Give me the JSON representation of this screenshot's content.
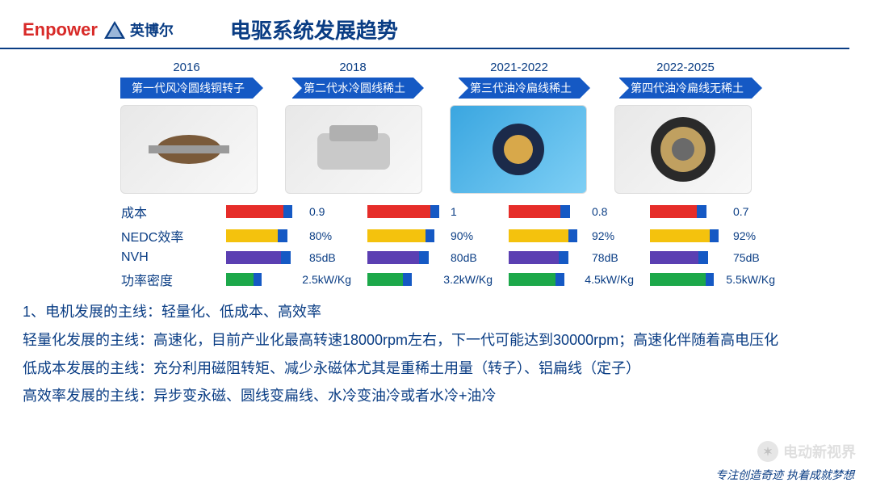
{
  "logo": {
    "en": "Enpower",
    "cn": "英博尔"
  },
  "title": "电驱系统发展趋势",
  "generations": [
    {
      "year": "2016",
      "label": "第一代风冷圆线铜转子"
    },
    {
      "year": "2018",
      "label": "第二代水冷圆线稀土"
    },
    {
      "year": "2021-2022",
      "label": "第三代油冷扁线稀土"
    },
    {
      "year": "2022-2025",
      "label": "第四代油冷扁线无稀土"
    }
  ],
  "metrics": {
    "labels": [
      "成本",
      "NEDC效率",
      "NVH",
      "功率密度"
    ],
    "rows": [
      {
        "color_main": "#e62d29",
        "color_tip": "#1559c4",
        "values": [
          "0.9",
          "1",
          "0.8",
          "0.7"
        ],
        "fills": [
          0.85,
          0.92,
          0.78,
          0.72
        ]
      },
      {
        "color_main": "#f4c20d",
        "color_tip": "#1559c4",
        "values": [
          "80%",
          "90%",
          "92%",
          "92%"
        ],
        "fills": [
          0.78,
          0.86,
          0.88,
          0.88
        ]
      },
      {
        "color_main": "#5b3fb2",
        "color_tip": "#1559c4",
        "values": [
          "85dB",
          "80dB",
          "78dB",
          "75dB"
        ],
        "fills": [
          0.82,
          0.78,
          0.76,
          0.74
        ]
      },
      {
        "color_main": "#1ca84a",
        "color_tip": "#1559c4",
        "values": [
          "2.5kW/Kg",
          "3.2kW/Kg",
          "4.5kW/Kg",
          "5.5kW/Kg"
        ],
        "fills": [
          0.5,
          0.62,
          0.78,
          0.9
        ]
      }
    ]
  },
  "bullets": [
    "1、电机发展的主线：轻量化、低成本、高效率",
    "轻量化发展的主线：高速化，目前产业化最高转速18000rpm左右，下一代可能达到30000rpm；高速化伴随着高电压化",
    "低成本发展的主线：充分利用磁阻转矩、减少永磁体尤其是重稀土用量（转子）、铝扁线（定子）",
    "高效率发展的主线：异步变永磁、圆线变扁线、水冷变油冷或者水冷+油冷"
  ],
  "watermark": "电动新视界",
  "footer": "专注创造奇迹 执着成就梦想",
  "colors": {
    "brand_red": "#d82a28",
    "brand_blue": "#0a3d84",
    "arrow_blue": "#1559c4"
  }
}
